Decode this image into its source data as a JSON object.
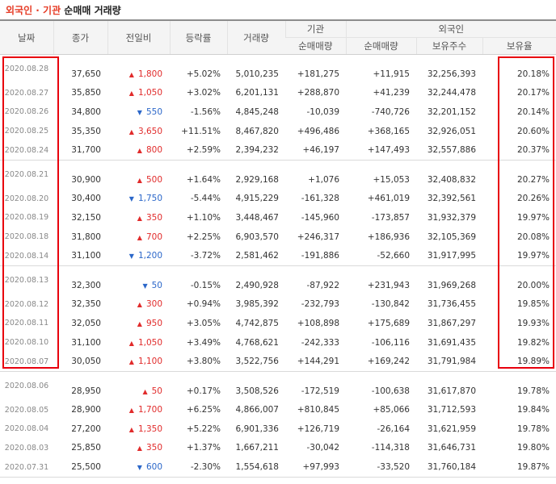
{
  "title": {
    "part_red": "외국인 · 기관",
    "part_black": " 순매매 거래량"
  },
  "headers": {
    "date": "날짜",
    "close": "종가",
    "change": "전일비",
    "rate": "등락률",
    "volume": "거래량",
    "inst_group": "기관",
    "foreign_group": "외국인",
    "inst_net": "순매매량",
    "foreign_net": "순매매량",
    "holdings": "보유주수",
    "ratio": "보유율"
  },
  "colors": {
    "up": "#e12b2b",
    "down": "#2b67c9",
    "highlight": "#e8000d",
    "header_bg": "#f4f4f4"
  },
  "rows": [
    {
      "date": "2020.08.28",
      "close": "37,650",
      "dir": "up",
      "change": "1,800",
      "rate": "+5.02%",
      "volume": "5,010,235",
      "inst": "+181,275",
      "foreign": "+11,915",
      "holdings": "32,256,393",
      "ratio": "20.18%"
    },
    {
      "date": "2020.08.27",
      "close": "35,850",
      "dir": "up",
      "change": "1,050",
      "rate": "+3.02%",
      "volume": "6,201,131",
      "inst": "+288,870",
      "foreign": "+41,239",
      "holdings": "32,244,478",
      "ratio": "20.17%"
    },
    {
      "date": "2020.08.26",
      "close": "34,800",
      "dir": "down",
      "change": "550",
      "rate": "-1.56%",
      "volume": "4,845,248",
      "inst": "-10,039",
      "foreign": "-740,726",
      "holdings": "32,201,152",
      "ratio": "20.14%"
    },
    {
      "date": "2020.08.25",
      "close": "35,350",
      "dir": "up",
      "change": "3,650",
      "rate": "+11.51%",
      "volume": "8,467,820",
      "inst": "+496,486",
      "foreign": "+368,165",
      "holdings": "32,926,051",
      "ratio": "20.60%"
    },
    {
      "date": "2020.08.24",
      "close": "31,700",
      "dir": "up",
      "change": "800",
      "rate": "+2.59%",
      "volume": "2,394,232",
      "inst": "+46,197",
      "foreign": "+147,493",
      "holdings": "32,557,886",
      "ratio": "20.37%"
    },
    {
      "date": "2020.08.21",
      "close": "30,900",
      "dir": "up",
      "change": "500",
      "rate": "+1.64%",
      "volume": "2,929,168",
      "inst": "+1,076",
      "foreign": "+15,053",
      "holdings": "32,408,832",
      "ratio": "20.27%"
    },
    {
      "date": "2020.08.20",
      "close": "30,400",
      "dir": "down",
      "change": "1,750",
      "rate": "-5.44%",
      "volume": "4,915,229",
      "inst": "-161,328",
      "foreign": "+461,019",
      "holdings": "32,392,561",
      "ratio": "20.26%"
    },
    {
      "date": "2020.08.19",
      "close": "32,150",
      "dir": "up",
      "change": "350",
      "rate": "+1.10%",
      "volume": "3,448,467",
      "inst": "-145,960",
      "foreign": "-173,857",
      "holdings": "31,932,379",
      "ratio": "19.97%"
    },
    {
      "date": "2020.08.18",
      "close": "31,800",
      "dir": "up",
      "change": "700",
      "rate": "+2.25%",
      "volume": "6,903,570",
      "inst": "+246,317",
      "foreign": "+186,936",
      "holdings": "32,105,369",
      "ratio": "20.08%"
    },
    {
      "date": "2020.08.14",
      "close": "31,100",
      "dir": "down",
      "change": "1,200",
      "rate": "-3.72%",
      "volume": "2,581,462",
      "inst": "-191,886",
      "foreign": "-52,660",
      "holdings": "31,917,995",
      "ratio": "19.97%"
    },
    {
      "date": "2020.08.13",
      "close": "32,300",
      "dir": "down",
      "change": "50",
      "rate": "-0.15%",
      "volume": "2,490,928",
      "inst": "-87,922",
      "foreign": "+231,943",
      "holdings": "31,969,268",
      "ratio": "20.00%"
    },
    {
      "date": "2020.08.12",
      "close": "32,350",
      "dir": "up",
      "change": "300",
      "rate": "+0.94%",
      "volume": "3,985,392",
      "inst": "-232,793",
      "foreign": "-130,842",
      "holdings": "31,736,455",
      "ratio": "19.85%"
    },
    {
      "date": "2020.08.11",
      "close": "32,050",
      "dir": "up",
      "change": "950",
      "rate": "+3.05%",
      "volume": "4,742,875",
      "inst": "+108,898",
      "foreign": "+175,689",
      "holdings": "31,867,297",
      "ratio": "19.93%"
    },
    {
      "date": "2020.08.10",
      "close": "31,100",
      "dir": "up",
      "change": "1,050",
      "rate": "+3.49%",
      "volume": "4,768,621",
      "inst": "-242,333",
      "foreign": "-106,116",
      "holdings": "31,691,435",
      "ratio": "19.82%"
    },
    {
      "date": "2020.08.07",
      "close": "30,050",
      "dir": "up",
      "change": "1,100",
      "rate": "+3.80%",
      "volume": "3,522,756",
      "inst": "+144,291",
      "foreign": "+169,242",
      "holdings": "31,791,984",
      "ratio": "19.89%"
    },
    {
      "date": "2020.08.06",
      "close": "28,950",
      "dir": "up",
      "change": "50",
      "rate": "+0.17%",
      "volume": "3,508,526",
      "inst": "-172,519",
      "foreign": "-100,638",
      "holdings": "31,617,870",
      "ratio": "19.78%"
    },
    {
      "date": "2020.08.05",
      "close": "28,900",
      "dir": "up",
      "change": "1,700",
      "rate": "+6.25%",
      "volume": "4,866,007",
      "inst": "+810,845",
      "foreign": "+85,066",
      "holdings": "31,712,593",
      "ratio": "19.84%"
    },
    {
      "date": "2020.08.04",
      "close": "27,200",
      "dir": "up",
      "change": "1,350",
      "rate": "+5.22%",
      "volume": "6,901,336",
      "inst": "+126,719",
      "foreign": "-26,164",
      "holdings": "31,621,959",
      "ratio": "19.78%"
    },
    {
      "date": "2020.08.03",
      "close": "25,850",
      "dir": "up",
      "change": "350",
      "rate": "+1.37%",
      "volume": "1,667,211",
      "inst": "-30,042",
      "foreign": "-114,318",
      "holdings": "31,646,731",
      "ratio": "19.80%"
    },
    {
      "date": "2020.07.31",
      "close": "25,500",
      "dir": "down",
      "change": "600",
      "rate": "-2.30%",
      "volume": "1,554,618",
      "inst": "+97,993",
      "foreign": "-33,520",
      "holdings": "31,760,184",
      "ratio": "19.87%"
    }
  ]
}
